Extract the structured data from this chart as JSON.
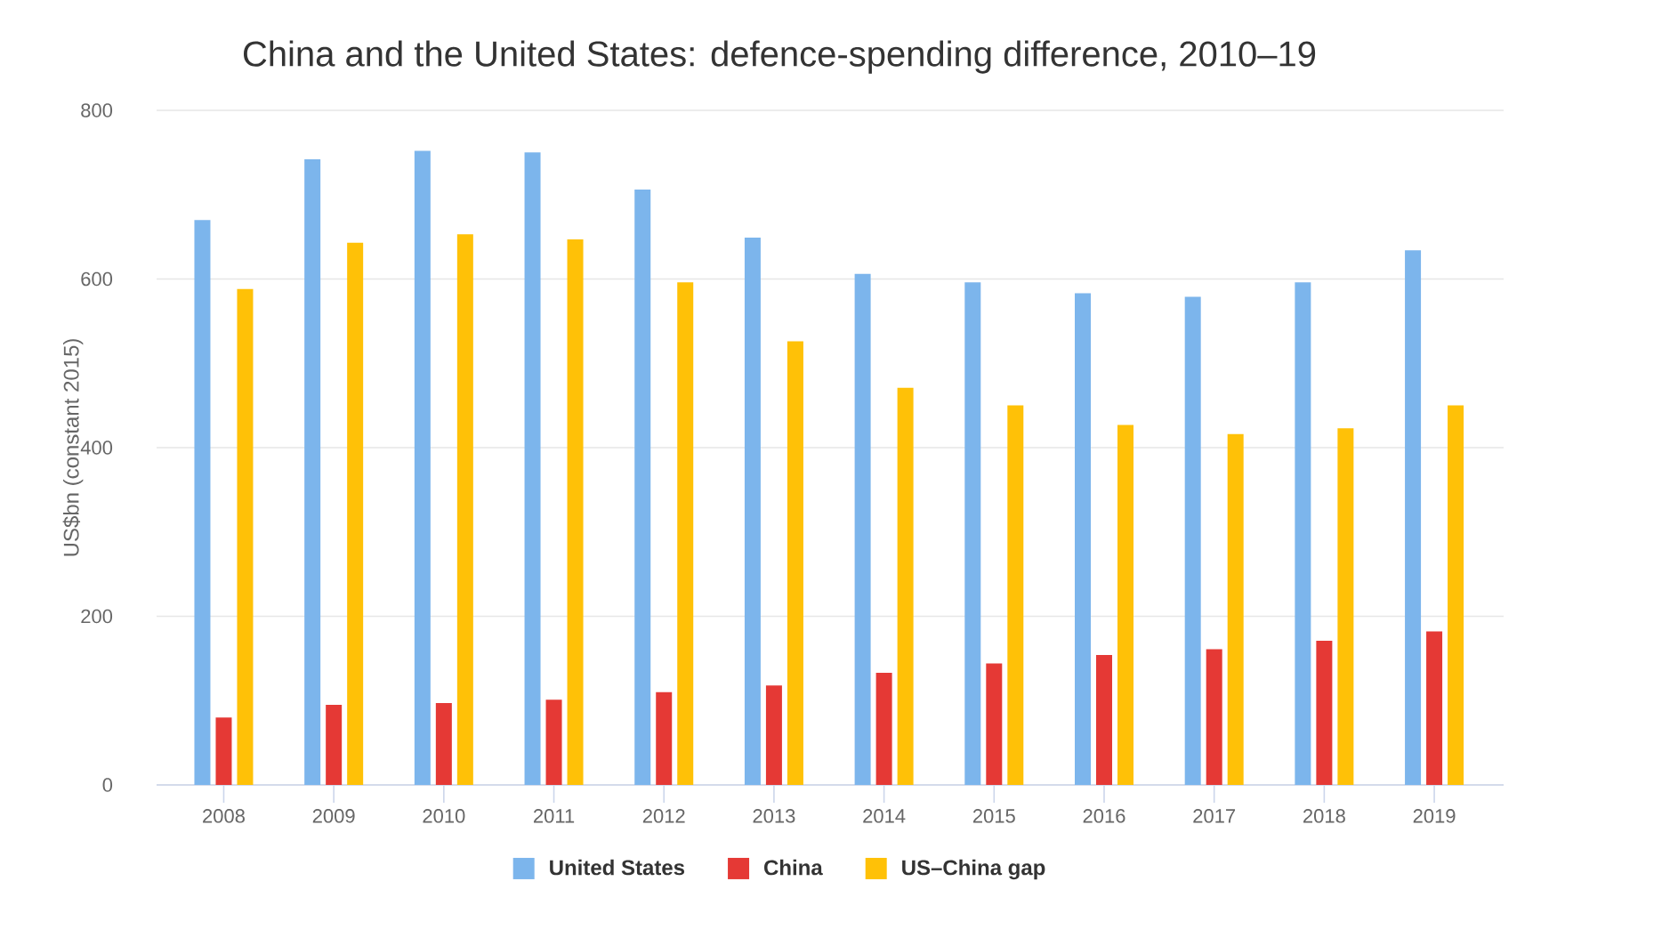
{
  "chart_data": {
    "type": "bar",
    "title": "China and the United States: defence-spending difference, 2010–19",
    "ylabel": "US$bn (constant 2015)",
    "categories": [
      "2008",
      "2009",
      "2010",
      "2011",
      "2012",
      "2013",
      "2014",
      "2015",
      "2016",
      "2017",
      "2018",
      "2019"
    ],
    "series": [
      {
        "name": "United States",
        "color": "#7cb5ec",
        "values": [
          670,
          742,
          752,
          750,
          706,
          649,
          606,
          596,
          583,
          579,
          596,
          634
        ]
      },
      {
        "name": "China",
        "color": "#e53935",
        "values": [
          80,
          95,
          97,
          101,
          110,
          118,
          133,
          144,
          154,
          161,
          171,
          182
        ]
      },
      {
        "name": "US–China gap",
        "color": "#ffc107",
        "values": [
          588,
          643,
          653,
          647,
          596,
          526,
          471,
          450,
          427,
          416,
          423,
          450
        ]
      }
    ],
    "ylim": [
      0,
      800
    ],
    "yticks": [
      0,
      200,
      400,
      600,
      800
    ],
    "grid": "y",
    "legend": "bottom"
  }
}
